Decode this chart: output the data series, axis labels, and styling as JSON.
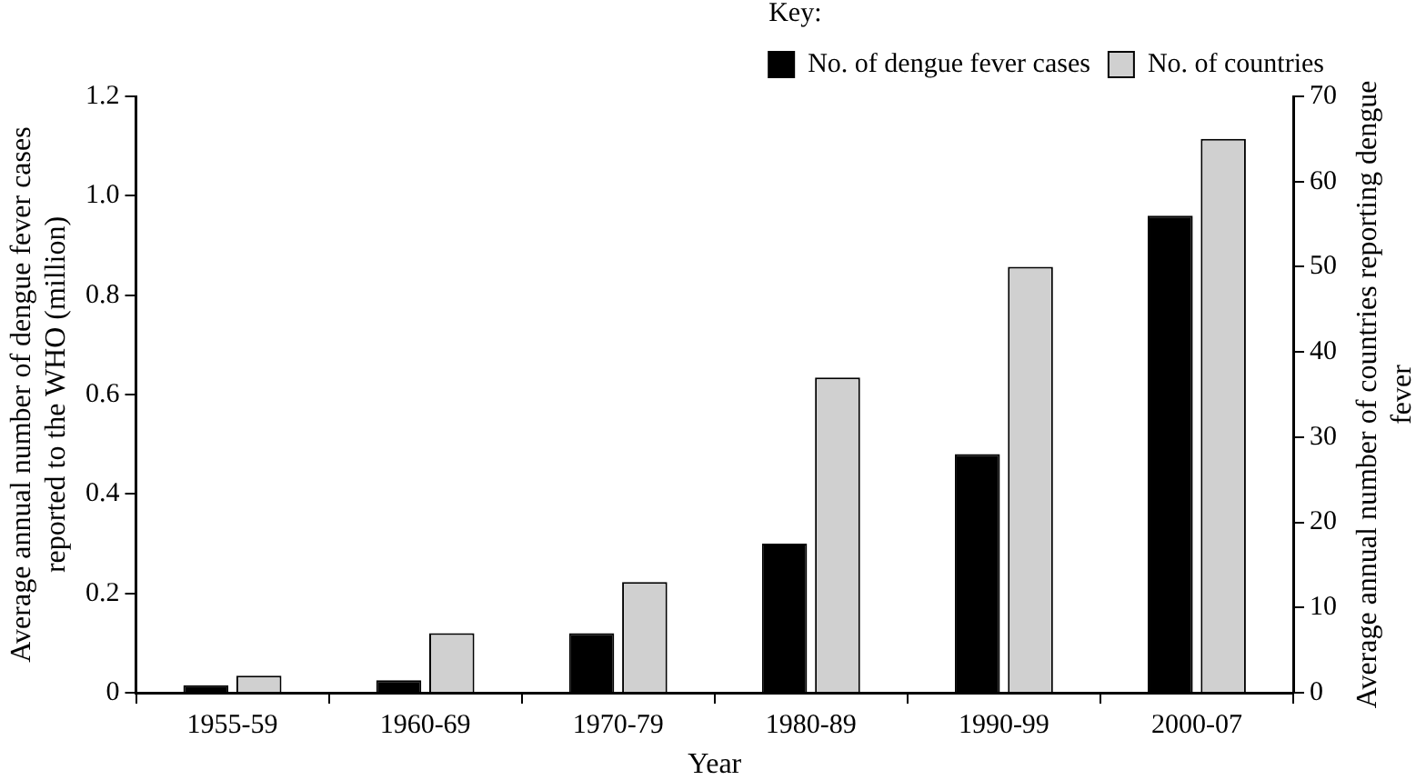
{
  "chart_data": {
    "type": "bar",
    "xlabel": "Year",
    "ylabel": "Average annual number of dengue fever cases reported to the WHO (million)",
    "y2label": "Average annual number of countries reporting dengue fever",
    "legend_title": "Key:",
    "legend": "top right",
    "grid": false,
    "categories": [
      "1955-59",
      "1960-69",
      "1970-79",
      "1980-89",
      "1990-99",
      "2000-07"
    ],
    "series": [
      {
        "name": "No. of dengue fever cases",
        "color": "#000000",
        "values": [
          0.015,
          0.025,
          0.12,
          0.3,
          0.48,
          0.96
        ]
      },
      {
        "name": "No. of countries",
        "color": "#d0d0d0",
        "axis": "y2",
        "values": [
          2,
          7,
          13,
          37,
          50,
          65
        ]
      }
    ],
    "ylim": [
      0,
      1.2
    ],
    "yticks": [
      0,
      0.2,
      0.4,
      0.6,
      0.8,
      {
        "value": 1,
        "label": "1.0"
      },
      1.2
    ],
    "y2lim": [
      0,
      70
    ],
    "y2ticks": [
      0,
      10,
      20,
      30,
      40,
      50,
      60,
      70
    ]
  }
}
